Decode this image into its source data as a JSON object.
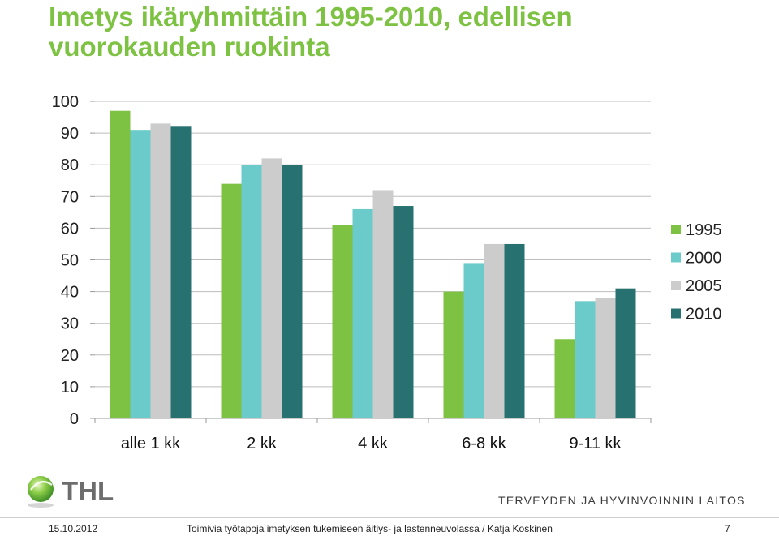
{
  "title": "Imetys ikäryhmittäin 1995-2010, edellisen vuorokauden ruokinta",
  "chart_data": {
    "type": "bar",
    "categories": [
      "alle 1 kk",
      "2 kk",
      "4 kk",
      "6-8 kk",
      "9-11 kk"
    ],
    "series": [
      {
        "name": "1995",
        "color": "#7dc242",
        "values": [
          97,
          74,
          61,
          40,
          25
        ]
      },
      {
        "name": "2000",
        "color": "#6bcaca",
        "values": [
          91,
          80,
          66,
          49,
          37
        ]
      },
      {
        "name": "2005",
        "color": "#cccccc",
        "values": [
          93,
          82,
          72,
          55,
          38
        ]
      },
      {
        "name": "2010",
        "color": "#277270",
        "values": [
          92,
          80,
          67,
          55,
          41
        ]
      }
    ],
    "ylim": [
      0,
      100
    ],
    "yticks": [
      0,
      10,
      20,
      30,
      40,
      50,
      60,
      70,
      80,
      90,
      100
    ],
    "grid": true,
    "legend": "right"
  },
  "logo_text": "THL",
  "organization": "TERVEYDEN JA HYVINVOINNIN LAITOS",
  "footer": {
    "date": "15.10.2012",
    "text": "Toimivia työtapoja imetyksen tukemiseen äitiys- ja lastenneuvolassa / Katja Koskinen",
    "page": "7"
  }
}
